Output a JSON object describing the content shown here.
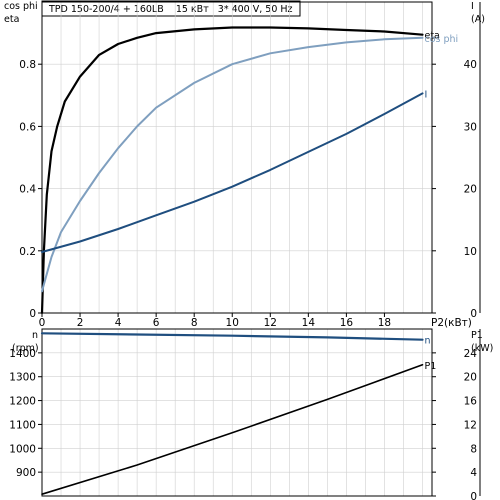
{
  "header": {
    "title": "TPD 150-200/4 + 160LB    15 кВт   3* 400 V, 50 Hz"
  },
  "colors": {
    "eta": "#000000",
    "cos_phi": "#7f9fbf",
    "current": "#1f4e7f",
    "speed": "#1f4e7f",
    "p1": "#000000",
    "grid": "#d0d0d0",
    "frame": "#000000"
  },
  "chart_data": [
    {
      "type": "line",
      "xlabel": "P2(кВт)",
      "xlim": [
        0,
        20.5
      ],
      "x_ticks": [
        "0",
        "2",
        "4",
        "6",
        "8",
        "10",
        "12",
        "14",
        "16",
        "18"
      ],
      "y_left_label_1": "cos phi",
      "y_left_label_2": "eta",
      "ylim_left": [
        0,
        1
      ],
      "y_left_ticks": [
        "0",
        "0.2",
        "0.4",
        "0.6",
        "0.8"
      ],
      "y_right_label_1": "I",
      "y_right_label_2": "(A)",
      "ylim_right": [
        0,
        50
      ],
      "y_right_ticks": [
        "0",
        "10",
        "20",
        "30",
        "40"
      ],
      "grid": true,
      "series": [
        {
          "name": "eta",
          "axis": "left",
          "x": [
            0,
            0.1,
            0.25,
            0.5,
            0.8,
            1.2,
            2,
            3,
            4,
            5,
            6,
            8,
            10,
            12,
            14,
            16,
            18,
            20
          ],
          "y": [
            0.0,
            0.2,
            0.38,
            0.52,
            0.6,
            0.68,
            0.76,
            0.83,
            0.865,
            0.885,
            0.9,
            0.912,
            0.918,
            0.918,
            0.915,
            0.91,
            0.905,
            0.895
          ]
        },
        {
          "name": "cos phi",
          "axis": "left",
          "x": [
            0,
            0.5,
            1,
            2,
            3,
            4,
            5,
            6,
            8,
            10,
            12,
            14,
            16,
            18,
            20
          ],
          "y": [
            0.07,
            0.18,
            0.26,
            0.36,
            0.45,
            0.53,
            0.6,
            0.66,
            0.74,
            0.8,
            0.835,
            0.855,
            0.87,
            0.88,
            0.885
          ]
        },
        {
          "name": "I",
          "axis": "right",
          "x": [
            0,
            2,
            4,
            6,
            8,
            10,
            12,
            14,
            16,
            18,
            20
          ],
          "y": [
            9.8,
            11.5,
            13.5,
            15.7,
            17.9,
            20.3,
            23,
            25.9,
            28.8,
            32,
            35.3
          ]
        }
      ]
    },
    {
      "type": "line",
      "xlim": [
        0,
        20.5
      ],
      "y_left_label_1": "n",
      "y_left_label_2": "(rpm)",
      "ylim_left": [
        800,
        1500
      ],
      "y_left_ticks": [
        "900",
        "1000",
        "1100",
        "1200",
        "1300",
        "1400"
      ],
      "y_right_label_1": "P1",
      "y_right_label_2": "(kW)",
      "ylim_right": [
        0,
        28
      ],
      "y_right_ticks": [
        "0",
        "4",
        "8",
        "12",
        "16",
        "20",
        "24"
      ],
      "grid": true,
      "series": [
        {
          "name": "n",
          "axis": "left",
          "x": [
            0,
            5,
            10,
            15,
            20
          ],
          "y": [
            1482,
            1477,
            1472,
            1465,
            1455
          ]
        },
        {
          "name": "P1",
          "axis": "right",
          "x": [
            0,
            5,
            10,
            15,
            20
          ],
          "y": [
            0.3,
            5.2,
            10.6,
            16.2,
            22
          ]
        }
      ]
    }
  ]
}
